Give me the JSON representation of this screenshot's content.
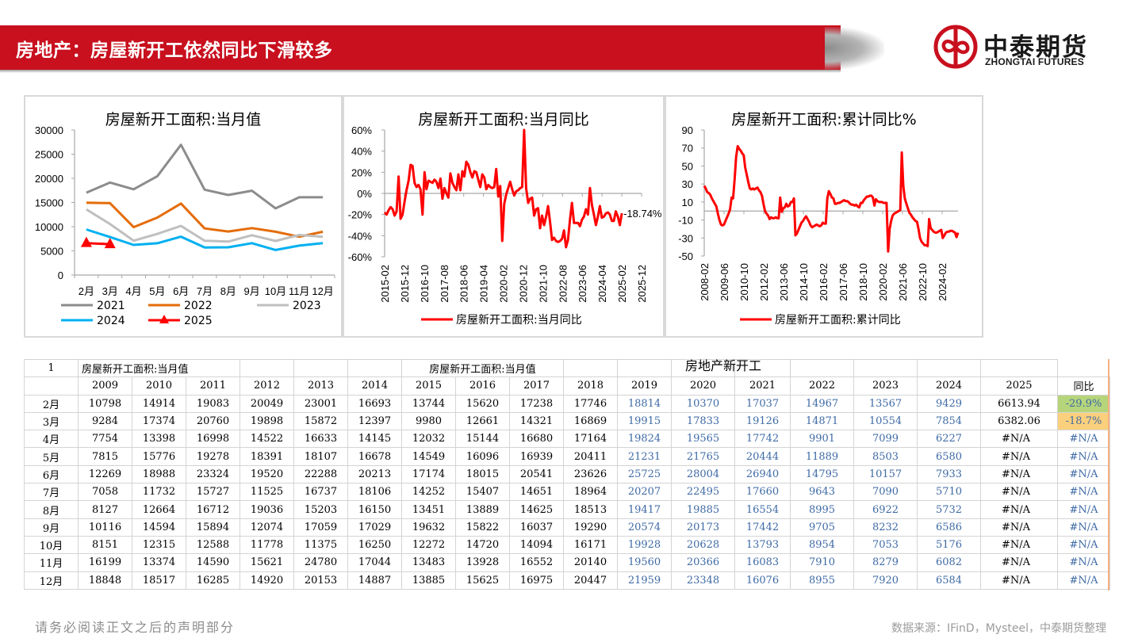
{
  "header": {
    "title": "房地产：房屋新开工依然同比下滑较多",
    "banner_color": "#c8101e",
    "logo": {
      "cn": "中泰期货",
      "en": "ZHONGTAI FUTURES",
      "icon": "zhongtai-logo-icon",
      "color": "#c8101e"
    }
  },
  "chart_data": [
    {
      "type": "line",
      "title": "房屋新开工面积:当月值",
      "categories": [
        "2月",
        "3月",
        "4月",
        "5月",
        "6月",
        "7月",
        "8月",
        "9月",
        "10月",
        "11月",
        "12月"
      ],
      "ylim": [
        0,
        30000
      ],
      "yticks": [
        "0",
        "5000",
        "10000",
        "15000",
        "20000",
        "25000",
        "30000"
      ],
      "legend_position": "bottom",
      "series": [
        {
          "name": "2021",
          "color": "#8c8c8c",
          "values": [
            17037,
            19126,
            17742,
            20444,
            26940,
            17660,
            16554,
            17442,
            13793,
            16083,
            16076
          ]
        },
        {
          "name": "2022",
          "color": "#e46c0a",
          "values": [
            14967,
            14871,
            9901,
            11889,
            14795,
            9643,
            8995,
            9705,
            8954,
            7910,
            8955
          ]
        },
        {
          "name": "2023",
          "color": "#bfbfbf",
          "values": [
            13567,
            10554,
            7099,
            8503,
            10157,
            7090,
            6922,
            8232,
            7053,
            8279,
            7920
          ]
        },
        {
          "name": "2024",
          "color": "#00b0f0",
          "values": [
            9429,
            7854,
            6227,
            6580,
            7933,
            5710,
            5732,
            6586,
            5176,
            6082,
            6584
          ]
        },
        {
          "name": "2025",
          "color": "#ff0000",
          "marker": "triangle",
          "values": [
            6613.94,
            6382.06
          ]
        }
      ]
    },
    {
      "type": "line",
      "title": "房屋新开工面积:当月同比",
      "ylim": [
        -0.6,
        0.6
      ],
      "yticks": [
        "-60%",
        "-40%",
        "-20%",
        "0%",
        "20%",
        "40%",
        "60%"
      ],
      "xticks": [
        "2015-02",
        "2015-12",
        "2016-10",
        "2017-08",
        "2018-06",
        "2019-04",
        "2020-02",
        "2020-12",
        "2021-10",
        "2022-08",
        "2023-06",
        "2024-04",
        "2025-02",
        "2025-12"
      ],
      "annotation": "-18.74%",
      "legend": "房屋新开工面积:当月同比",
      "legend_position": "bottom",
      "series": [
        {
          "name": "房屋新开工面积:当月同比",
          "color": "#ff0000",
          "values": [
            -18,
            -20,
            -16,
            -13,
            -15,
            -21,
            -17,
            16,
            -24,
            -20,
            -8,
            3,
            12,
            27,
            26,
            10,
            6,
            8,
            4,
            -20,
            20,
            4,
            12,
            11,
            10,
            13,
            11,
            5,
            14,
            -5,
            5,
            0,
            -4,
            19,
            10,
            6,
            3,
            18,
            3,
            21,
            16,
            30,
            27,
            20,
            15,
            21,
            20,
            13,
            6,
            18,
            15,
            4,
            8,
            6,
            5,
            6,
            23,
            -3,
            7,
            -45,
            -10,
            -1,
            5,
            11,
            4,
            -2,
            2,
            3,
            5,
            6,
            60,
            5,
            -9,
            -5,
            -4,
            -21,
            -15,
            -14,
            -33,
            -21,
            -30,
            -22,
            -12,
            -27,
            -44,
            -42,
            -45,
            -46,
            -45,
            -43,
            -35,
            -51,
            -44,
            -25,
            -9,
            -28,
            -28,
            -28,
            -31,
            -25,
            -22,
            -15,
            -20,
            5,
            -11,
            -20,
            -30,
            -22,
            -12,
            -23,
            -22,
            -19,
            -18,
            -20,
            -26,
            -26,
            -17,
            -22,
            -30,
            -18.74
          ]
        }
      ]
    },
    {
      "type": "line",
      "title": "房屋新开工面积:累计同比%",
      "ylim": [
        -50,
        90
      ],
      "yticks": [
        "-50",
        "-30",
        "-10",
        "10",
        "30",
        "50",
        "70",
        "90"
      ],
      "xticks": [
        "2008-02",
        "2009-06",
        "2010-10",
        "2012-02",
        "2013-06",
        "2014-10",
        "2016-02",
        "2017-06",
        "2018-10",
        "2020-02",
        "2021-06",
        "2022-10",
        "2024-02"
      ],
      "legend": "房屋新开工面积:累计同比",
      "legend_position": "bottom",
      "series": [
        {
          "name": "房屋新开工面积:累计同比",
          "color": "#ff0000",
          "values": [
            28,
            25,
            21,
            20,
            18,
            14,
            11,
            8,
            5,
            -3,
            -10,
            -15,
            -16,
            -15,
            -11,
            -7,
            -3,
            2,
            15,
            14,
            35,
            60,
            72,
            69,
            67,
            64,
            62,
            48,
            40,
            32,
            25,
            24,
            25,
            24,
            25,
            26,
            23,
            21,
            17,
            8,
            0,
            -3,
            -5,
            -9,
            -7,
            -8,
            -8,
            -7,
            -8,
            -8,
            15,
            -1,
            3,
            4,
            8,
            5,
            6,
            10,
            10,
            14,
            -27,
            -25,
            -21,
            -17,
            -13,
            -11,
            -8,
            -6,
            -9,
            -12,
            -16,
            -18,
            -17,
            -16,
            -15,
            -16,
            -17,
            -16,
            -13,
            -14,
            -14,
            14,
            22,
            19,
            15,
            14,
            8,
            8,
            9,
            9,
            10,
            11,
            12,
            11,
            11,
            10,
            8,
            7,
            7,
            6,
            7,
            5,
            4,
            9,
            9,
            12,
            14,
            16,
            16,
            17,
            17,
            15,
            6,
            13,
            11,
            10,
            10,
            10,
            9,
            9,
            9,
            -45,
            -20,
            -11,
            -5,
            -3,
            -2,
            -1,
            0,
            1,
            65,
            28,
            14,
            8,
            3,
            -2,
            -4,
            -7,
            -9,
            -11,
            -12,
            -20,
            -30,
            -34,
            -36,
            -38,
            -38,
            -39,
            -9,
            -19,
            -21,
            -23,
            -24,
            -24,
            -23,
            -22,
            -21,
            -30,
            -27,
            -24,
            -23,
            -23,
            -22,
            -22,
            -23,
            -24,
            -29,
            -24
          ]
        }
      ]
    }
  ],
  "table": {
    "top_left": "1",
    "group_label_1": "房屋新开工面积:当月值",
    "group_label_2": "房屋新开工面积:当月值",
    "overlay_title": "房地产新开工",
    "years": [
      "2009",
      "2010",
      "2011",
      "2012",
      "2013",
      "2014",
      "2015",
      "2016",
      "2017",
      "2018",
      "2019",
      "2020",
      "2021",
      "2022",
      "2023",
      "2024",
      "2025"
    ],
    "yoy_header": "同比",
    "rows": [
      {
        "month": "2月",
        "values": [
          "10798",
          "14914",
          "19083",
          "20049",
          "23001",
          "16693",
          "13744",
          "15620",
          "17238",
          "17746",
          "18814",
          "10370",
          "17037",
          "14967",
          "13567",
          "9429",
          "6613.94"
        ],
        "yoy": "-29.9%",
        "yoy_color": "#b6d57b"
      },
      {
        "month": "3月",
        "values": [
          "9284",
          "17374",
          "20760",
          "19898",
          "15872",
          "12397",
          "9980",
          "12661",
          "14321",
          "16869",
          "19915",
          "17833",
          "19126",
          "14871",
          "10554",
          "7854",
          "6382.06"
        ],
        "yoy": "-18.7%",
        "yoy_color": "#fbd07d"
      },
      {
        "month": "4月",
        "values": [
          "7754",
          "13398",
          "16998",
          "14522",
          "16633",
          "14145",
          "12032",
          "15144",
          "16680",
          "17164",
          "19824",
          "19565",
          "17742",
          "9901",
          "7099",
          "6227",
          "#N/A"
        ],
        "yoy": "#N/A"
      },
      {
        "month": "5月",
        "values": [
          "7815",
          "15776",
          "19278",
          "18391",
          "18107",
          "16678",
          "14549",
          "16096",
          "16939",
          "20411",
          "21231",
          "21765",
          "20444",
          "11889",
          "8503",
          "6580",
          "#N/A"
        ],
        "yoy": "#N/A"
      },
      {
        "month": "6月",
        "values": [
          "12269",
          "18988",
          "23324",
          "19520",
          "22288",
          "20213",
          "17174",
          "18015",
          "20541",
          "23626",
          "25725",
          "28004",
          "26940",
          "14795",
          "10157",
          "7933",
          "#N/A"
        ],
        "yoy": "#N/A"
      },
      {
        "month": "7月",
        "values": [
          "7058",
          "11732",
          "15727",
          "11525",
          "16737",
          "18106",
          "14252",
          "15407",
          "14651",
          "18964",
          "20207",
          "22495",
          "17660",
          "9643",
          "7090",
          "5710",
          "#N/A"
        ],
        "yoy": "#N/A"
      },
      {
        "month": "8月",
        "values": [
          "8127",
          "12664",
          "16712",
          "19036",
          "15203",
          "16150",
          "13451",
          "13889",
          "14625",
          "18513",
          "19417",
          "19885",
          "16554",
          "8995",
          "6922",
          "5732",
          "#N/A"
        ],
        "yoy": "#N/A"
      },
      {
        "month": "9月",
        "values": [
          "10116",
          "14594",
          "15894",
          "12074",
          "17059",
          "17029",
          "19632",
          "15822",
          "16037",
          "19290",
          "20574",
          "20173",
          "17442",
          "9705",
          "8232",
          "6586",
          "#N/A"
        ],
        "yoy": "#N/A"
      },
      {
        "month": "10月",
        "values": [
          "8151",
          "12315",
          "12588",
          "11778",
          "11375",
          "16250",
          "12272",
          "14720",
          "14094",
          "16171",
          "19928",
          "20628",
          "13793",
          "8954",
          "7053",
          "5176",
          "#N/A"
        ],
        "yoy": "#N/A"
      },
      {
        "month": "11月",
        "values": [
          "16199",
          "13374",
          "14590",
          "15621",
          "24780",
          "17044",
          "13483",
          "13928",
          "16552",
          "20140",
          "19560",
          "20366",
          "16083",
          "7910",
          "8279",
          "6082",
          "#N/A"
        ],
        "yoy": "#N/A"
      },
      {
        "month": "12月",
        "values": [
          "18848",
          "18517",
          "16285",
          "14920",
          "20153",
          "14887",
          "13885",
          "15625",
          "16975",
          "20447",
          "21959",
          "23348",
          "16076",
          "8955",
          "7920",
          "6584",
          "#N/A"
        ],
        "yoy": "#N/A"
      }
    ]
  },
  "footer": {
    "disclaimer": "请务必阅读正文之后的声明部分",
    "source": "数据来源：IFinD，Mysteel，中泰期货整理"
  }
}
